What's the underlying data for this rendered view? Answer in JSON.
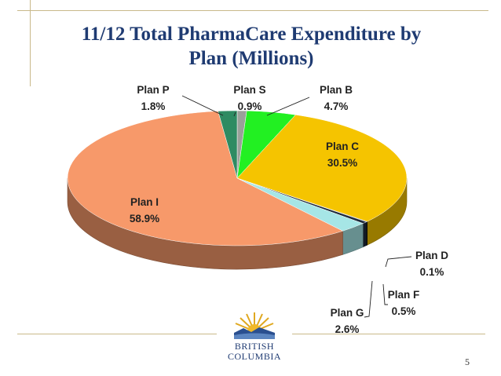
{
  "slide": {
    "title_line1": "11/12 Total PharmaCare Expenditure by",
    "title_line2": "Plan (Millions)",
    "page_number": "5",
    "logo_line1": "BRITISH",
    "logo_line2": "COLUMBIA"
  },
  "chart_data": {
    "type": "pie",
    "title": "11/12 Total PharmaCare Expenditure by Plan (Millions)",
    "three_d": true,
    "slices": [
      {
        "label": "Plan S",
        "value": 0.9,
        "pct_label": "0.9%",
        "color": "#9aa09a"
      },
      {
        "label": "Plan B",
        "value": 4.7,
        "pct_label": "4.7%",
        "color": "#22f022"
      },
      {
        "label": "Plan C",
        "value": 30.5,
        "pct_label": "30.5%",
        "color": "#f5c400"
      },
      {
        "label": "Plan D",
        "value": 0.1,
        "pct_label": "0.1%",
        "color": "#000000"
      },
      {
        "label": "Plan F",
        "value": 0.5,
        "pct_label": "0.5%",
        "color": "#1e2a3a"
      },
      {
        "label": "Plan G",
        "value": 2.6,
        "pct_label": "2.6%",
        "color": "#a6e6e6"
      },
      {
        "label": "Plan I",
        "value": 58.9,
        "pct_label": "58.9%",
        "color": "#f7996a"
      },
      {
        "label": "Plan P",
        "value": 1.8,
        "pct_label": "1.8%",
        "color": "#2e8b62"
      }
    ]
  }
}
